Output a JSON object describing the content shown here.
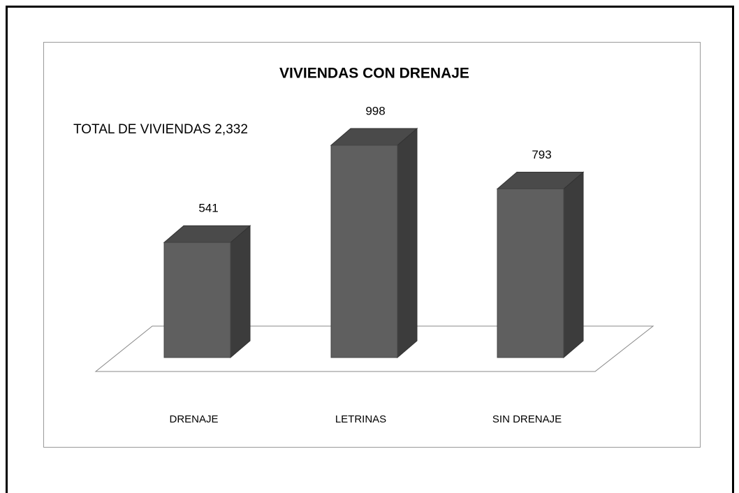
{
  "chart_data": {
    "type": "bar3d",
    "title": "VIVIENDAS CON DRENAJE",
    "annotation": "TOTAL DE VIVIENDAS 2,332",
    "categories": [
      "DRENAJE",
      "LETRINAS",
      "SIN DRENAJE"
    ],
    "values": [
      541,
      998,
      793
    ],
    "color": "#5f5f5f"
  }
}
